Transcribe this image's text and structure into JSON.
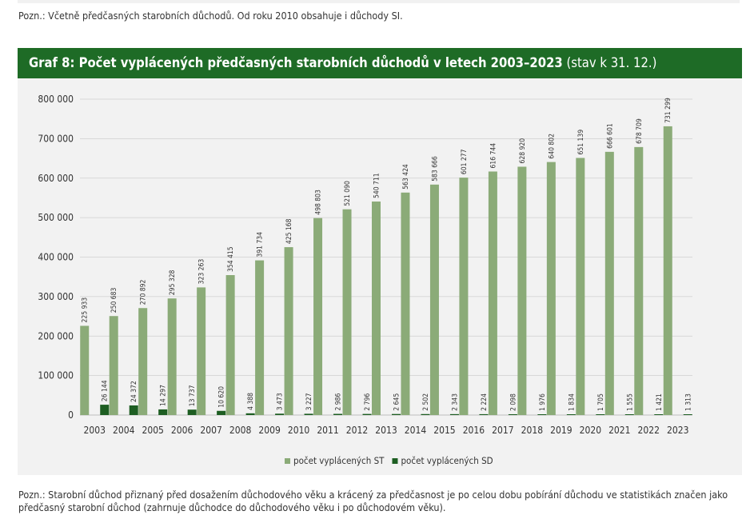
{
  "note_top": "Pozn.: Včetně předčasných starobních důchodů. Od roku 2010 obsahuje i důchody SI.",
  "header": {
    "title_bold": "Graf 8: Počet vyplácených předčasných starobních důchodů v letech 2003–2023",
    "title_normal": " (stav k 31. 12.)"
  },
  "colors": {
    "header_bg": "#1e6b26",
    "series_st": "#8bab78",
    "series_sd": "#1d5e22",
    "panel_bg": "#f2f2f2"
  },
  "chart_data": {
    "type": "bar",
    "categories": [
      "2003",
      "2004",
      "2005",
      "2006",
      "2007",
      "2008",
      "2009",
      "2010",
      "2011",
      "2012",
      "2013",
      "2014",
      "2015",
      "2016",
      "2017",
      "2018",
      "2019",
      "2020",
      "2021",
      "2022",
      "2023"
    ],
    "series": [
      {
        "name": "počet vyplácených ST",
        "values": [
          225933,
          250683,
          270892,
          295328,
          323263,
          354415,
          391734,
          425168,
          498803,
          521090,
          540711,
          563424,
          583666,
          601277,
          616744,
          628920,
          640802,
          651139,
          666601,
          678709,
          731299
        ],
        "labels": [
          "225 933",
          "250 683",
          "270 892",
          "295 328",
          "323 263",
          "354 415",
          "391 734",
          "425 168",
          "498 803",
          "521 090",
          "540 711",
          "563 424",
          "583 666",
          "601 277",
          "616 744",
          "628 920",
          "640 802",
          "651 139",
          "666 601",
          "678 709",
          "731 299"
        ]
      },
      {
        "name": "počet vyplácených SD",
        "values": [
          26144,
          24372,
          14297,
          13737,
          10620,
          4388,
          3473,
          3227,
          2986,
          2796,
          2645,
          2502,
          2343,
          2224,
          2098,
          1976,
          1834,
          1705,
          1555,
          1421,
          1313
        ],
        "labels": [
          "26 144",
          "24 372",
          "14 297",
          "13 737",
          "10 620",
          "4 388",
          "3 473",
          "3 227",
          "2 986",
          "2 796",
          "2 645",
          "2 502",
          "2 343",
          "2 224",
          "2 098",
          "1 976",
          "1 834",
          "1 705",
          "1 555",
          "1 421",
          "1 313"
        ]
      }
    ],
    "ylim": [
      0,
      800000
    ],
    "yticks": [
      0,
      100000,
      200000,
      300000,
      400000,
      500000,
      600000,
      700000,
      800000
    ],
    "ytick_labels": [
      "0",
      "100 000",
      "200 000",
      "300 000",
      "400 000",
      "500 000",
      "600 000",
      "700 000",
      "800 000"
    ],
    "grid": true,
    "legend_position": "bottom-center"
  },
  "note_bottom": "Pozn.: Starobní důchod přiznaný před dosažením důchodového věku a krácený za předčasnost je po celou dobu pobírání důchodu ve statistikách značen jako předčasný starobní důchod (zahrnuje důchodce do důchodového věku i po důchodovém věku)."
}
